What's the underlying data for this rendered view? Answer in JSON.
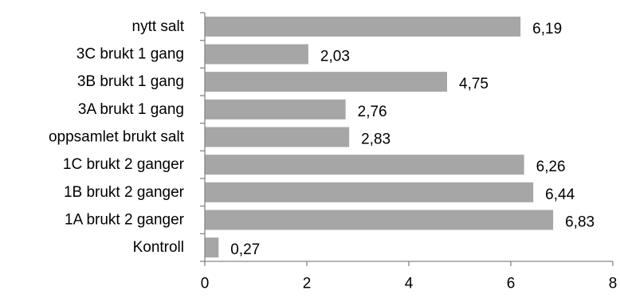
{
  "chart_data": {
    "type": "bar",
    "orientation": "horizontal",
    "categories": [
      "nytt salt",
      "3C brukt 1 gang",
      "3B brukt 1 gang",
      "3A brukt 1 gang",
      "oppsamlet brukt salt",
      "1C brukt 2 ganger",
      "1B brukt 2 ganger",
      "1A brukt 2 ganger",
      "Kontroll"
    ],
    "values": [
      6.19,
      2.03,
      4.75,
      2.76,
      2.83,
      6.26,
      6.44,
      6.83,
      0.27
    ],
    "value_labels": [
      "6,19",
      "2,03",
      "4,75",
      "2,76",
      "2,83",
      "6,26",
      "6,44",
      "6,83",
      "0,27"
    ],
    "xlim": [
      0,
      8
    ],
    "x_ticks": [
      "0",
      "2",
      "4",
      "6",
      "8"
    ],
    "grid": false,
    "legend": "none",
    "bar_color": "#A6A6A6",
    "axis_color": "#868686"
  }
}
